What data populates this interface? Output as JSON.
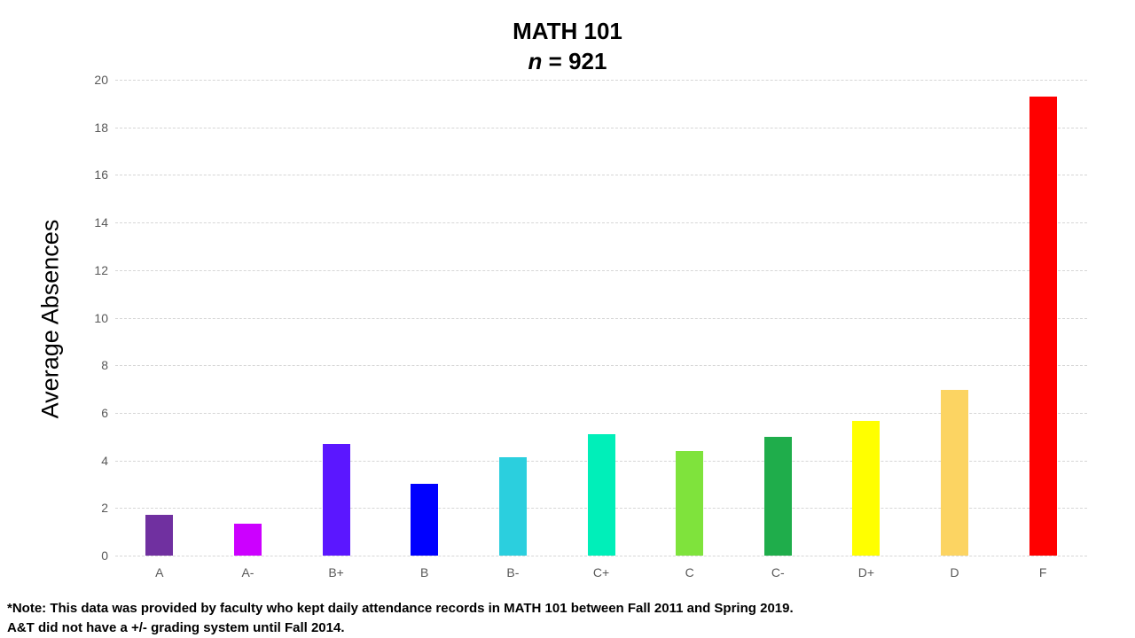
{
  "header": {
    "title": "MATH 101",
    "subtitle_var": "n",
    "subtitle_rest": " = 921"
  },
  "note": {
    "line1": "*Note: This data was provided by faculty who kept daily attendance records in MATH 101 between Fall 2011 and Spring 2019.",
    "line2": "A&T did not have a +/- grading system until Fall 2014."
  },
  "chart_data": {
    "type": "bar",
    "title": "MATH 101",
    "subtitle": "n = 921",
    "xlabel": "",
    "ylabel": "Average Absences",
    "ylim": [
      0,
      20
    ],
    "yticks": [
      0,
      2,
      4,
      6,
      8,
      10,
      12,
      14,
      16,
      18,
      20
    ],
    "grid": "horizontal-dashed",
    "gridline_color": "#d6d6d6",
    "tick_label_color": "#595959",
    "legend": "none",
    "categories": [
      "A",
      "A-",
      "B+",
      "B",
      "B-",
      "C+",
      "C",
      "C-",
      "D+",
      "D",
      "F"
    ],
    "values": [
      1.7,
      1.35,
      4.7,
      3.0,
      4.15,
      5.1,
      4.4,
      5.0,
      5.65,
      6.95,
      19.3
    ],
    "bar_colors": [
      "#7030A0",
      "#CC00FF",
      "#5B17FF",
      "#0000FF",
      "#2BCFDE",
      "#00EFB9",
      "#7FE33C",
      "#1FAD4B",
      "#FFFF00",
      "#FCD462",
      "#FF0000"
    ]
  }
}
